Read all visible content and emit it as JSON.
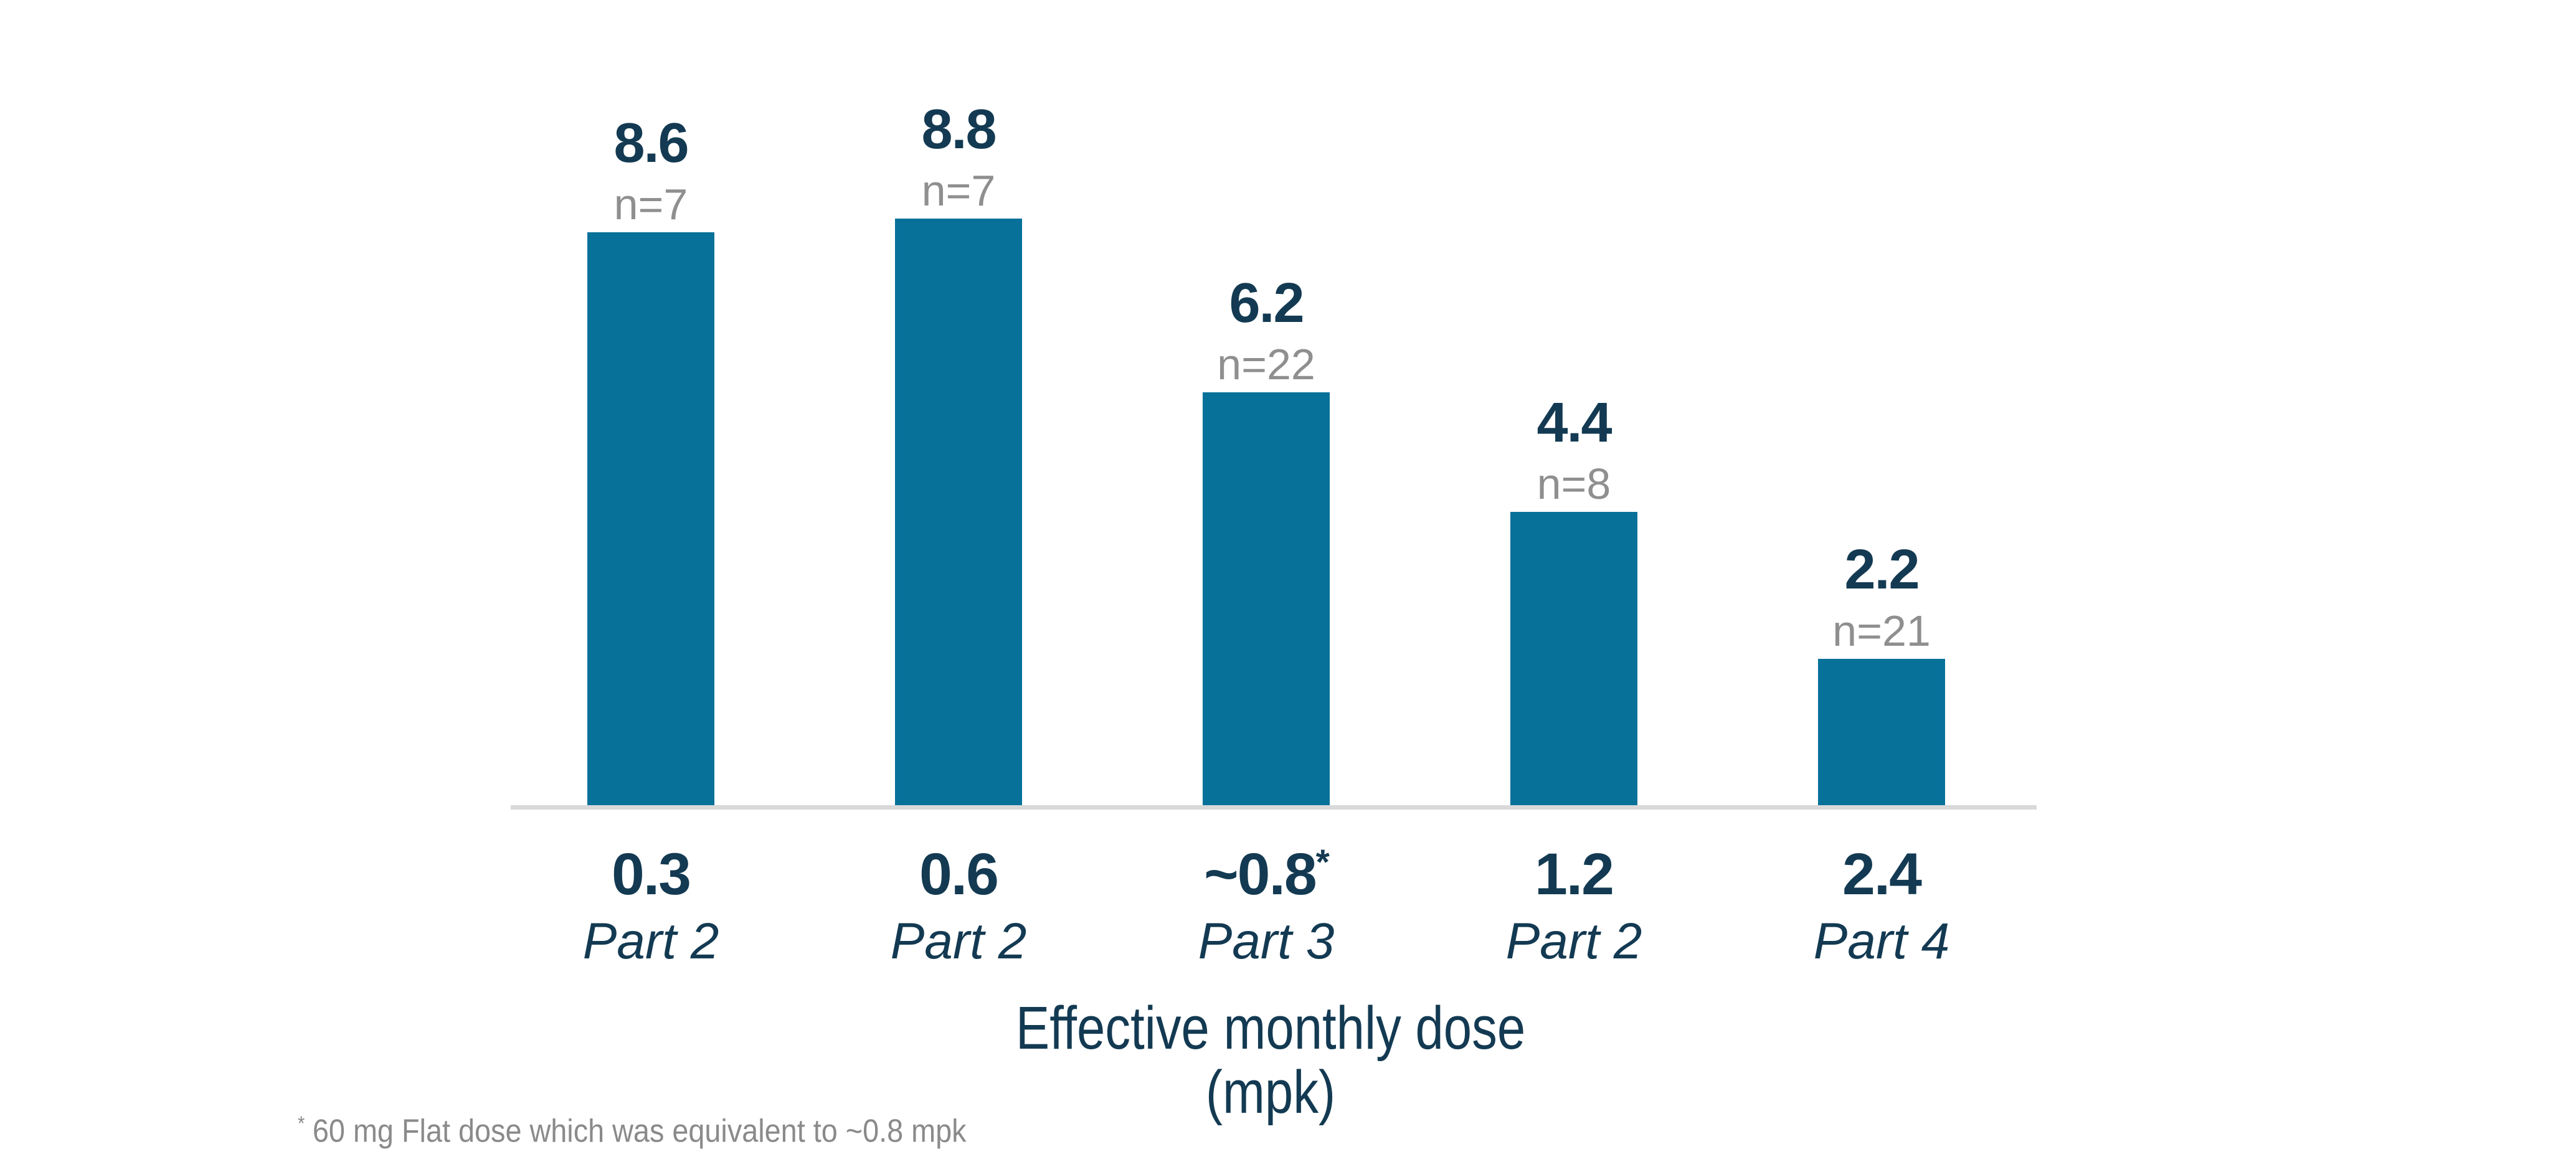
{
  "chart_data": {
    "type": "bar",
    "title": "",
    "xlabel_line1": "Effective monthly dose",
    "xlabel_line2": "(mpk)",
    "ylabel": "",
    "ylim": [
      0,
      10
    ],
    "grid": false,
    "legend": "none",
    "bar_color": "#07719A",
    "value_label_color": "#133A52",
    "n_label_color": "#8F8F8F",
    "axis_line_color": "#D9D9D9",
    "footnote_color": "#8A8A8A",
    "categories": [
      "0.3 Part 2",
      "0.6 Part 2",
      "~0.8* Part 3",
      "1.2 Part 2",
      "2.4 Part 4"
    ],
    "values": [
      8.6,
      8.8,
      6.2,
      4.4,
      2.2
    ],
    "bars": [
      {
        "value": 8.6,
        "value_label": "8.6",
        "n_label": "n=7",
        "dose": "0.3",
        "dose_marker": "",
        "part": "Part 2"
      },
      {
        "value": 8.8,
        "value_label": "8.8",
        "n_label": "n=7",
        "dose": "0.6",
        "dose_marker": "",
        "part": "Part 2"
      },
      {
        "value": 6.2,
        "value_label": "6.2",
        "n_label": "n=22",
        "dose": "~0.8",
        "dose_marker": "*",
        "part": "Part 3"
      },
      {
        "value": 4.4,
        "value_label": "4.4",
        "n_label": "n=8",
        "dose": "1.2",
        "dose_marker": "",
        "part": "Part 2"
      },
      {
        "value": 2.2,
        "value_label": "2.2",
        "n_label": "n=21",
        "dose": "2.4",
        "dose_marker": "",
        "part": "Part 4"
      }
    ],
    "footnote_marker": "*",
    "footnote_text": "60 mg Flat dose which was equivalent to ~0.8 mpk"
  }
}
